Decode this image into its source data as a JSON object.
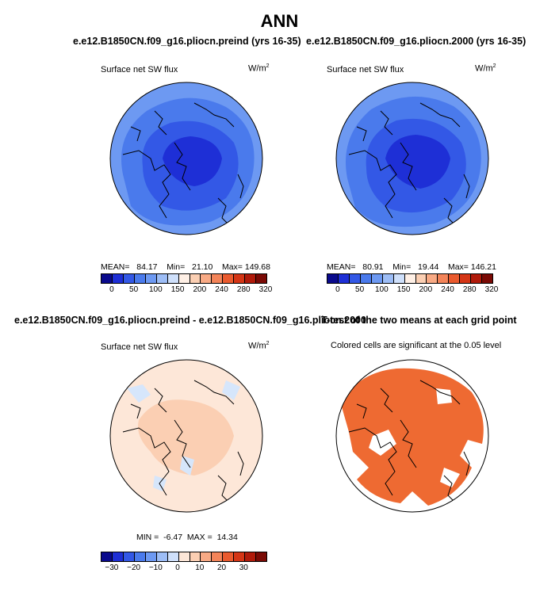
{
  "main_title": "ANN",
  "panels": {
    "p1": {
      "case_title": "e.e12.B1850CN.f09_g16.pliocn.preind (yrs 16-35)",
      "variable": "Surface net SW flux",
      "units": "W/m",
      "units_sup": "2",
      "stats": {
        "mean_label": "MEAN=",
        "mean": "84.17",
        "min_label": "Min=",
        "min": "21.10",
        "max_label": "Max=",
        "max": "149.68"
      }
    },
    "p2": {
      "case_title": "e.e12.B1850CN.f09_g16.pliocn.2000 (yrs 16-35)",
      "variable": "Surface net SW flux",
      "units": "W/m",
      "units_sup": "2",
      "stats": {
        "mean_label": "MEAN=",
        "mean": "80.91",
        "min_label": "Min=",
        "min": "19.44",
        "max_label": "Max=",
        "max": "146.21"
      }
    },
    "p3": {
      "case_title": "e.e12.B1850CN.f09_g16.pliocn.preind - e.e12.B1850CN.f09_g16.pliocn.2000",
      "variable": "Surface net SW flux",
      "units": "W/m",
      "units_sup": "2",
      "stats": {
        "min_label": "MIN =",
        "min": "-6.47",
        "max_label": "MAX =",
        "max": "14.34"
      }
    },
    "p4": {
      "case_title": "T-test of the two means at each grid point",
      "subtitle": "Colored cells are significant at the 0.05 level"
    }
  },
  "colorbars": {
    "absolute": {
      "colors": [
        "#0a0a8c",
        "#1e2fd6",
        "#3358e6",
        "#4a7aec",
        "#6d99f2",
        "#9dbdf6",
        "#cfe0fb",
        "#fff0e6",
        "#fbcfb3",
        "#f8aa85",
        "#f38459",
        "#ea5a2e",
        "#d43515",
        "#b01a0a",
        "#7a0a05"
      ],
      "ticks": [
        "0",
        "50",
        "100",
        "150",
        "200",
        "240",
        "280",
        "320"
      ]
    },
    "difference": {
      "colors": [
        "#0a0a8c",
        "#1e2fd6",
        "#3358e6",
        "#4a7aec",
        "#6d99f2",
        "#9dbdf6",
        "#cfe0fb",
        "#fde7d8",
        "#fbcfb3",
        "#f8aa85",
        "#f38459",
        "#ea5a2e",
        "#d43515",
        "#b01a0a",
        "#7a0a05"
      ],
      "ticks": [
        "−30",
        "−20",
        "−10",
        "0",
        "10",
        "20",
        "30"
      ]
    }
  },
  "map_colors": {
    "ocean_outer": "#6d99f2",
    "mid": "#4a7aec",
    "inner": "#3358e6",
    "core": "#1e2fd6",
    "diff_base": "#fde7d8",
    "diff_pos": "#fbcfb3",
    "diff_neg": "#d6e6fb",
    "ttest_sig": "#ee6a32"
  }
}
